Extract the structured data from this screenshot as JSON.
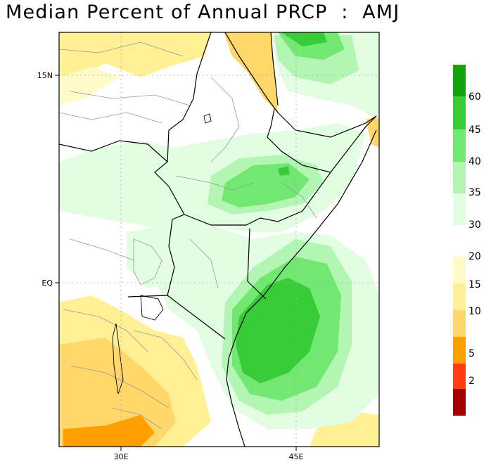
{
  "title": "Median Percent of Annual PRCP  :  AMJ",
  "axes": {
    "y_ticks": [
      {
        "label": "15N"
      },
      {
        "label": "EQ"
      }
    ],
    "x_ticks": [
      {
        "label": "30E"
      },
      {
        "label": "45E"
      }
    ]
  },
  "colorbar": {
    "upper": [
      {
        "label": "60",
        "color": "#13a30f"
      },
      {
        "label": "45",
        "color": "#38cc38"
      },
      {
        "label": "40",
        "color": "#72e872"
      },
      {
        "label": "35",
        "color": "#b3f5b3"
      },
      {
        "label": "30",
        "color": "#e2fde2"
      }
    ],
    "upper_bottom_label": "30",
    "lower": [
      {
        "label": "20",
        "color": "#fffac8"
      },
      {
        "label": "15",
        "color": "#fff096"
      },
      {
        "label": "10",
        "color": "#ffd76a"
      },
      {
        "label": "5",
        "color": "#ffa000"
      },
      {
        "label": "2",
        "color": "#ff3c14"
      },
      {
        "label": "",
        "color": "#a00000"
      }
    ]
  }
}
